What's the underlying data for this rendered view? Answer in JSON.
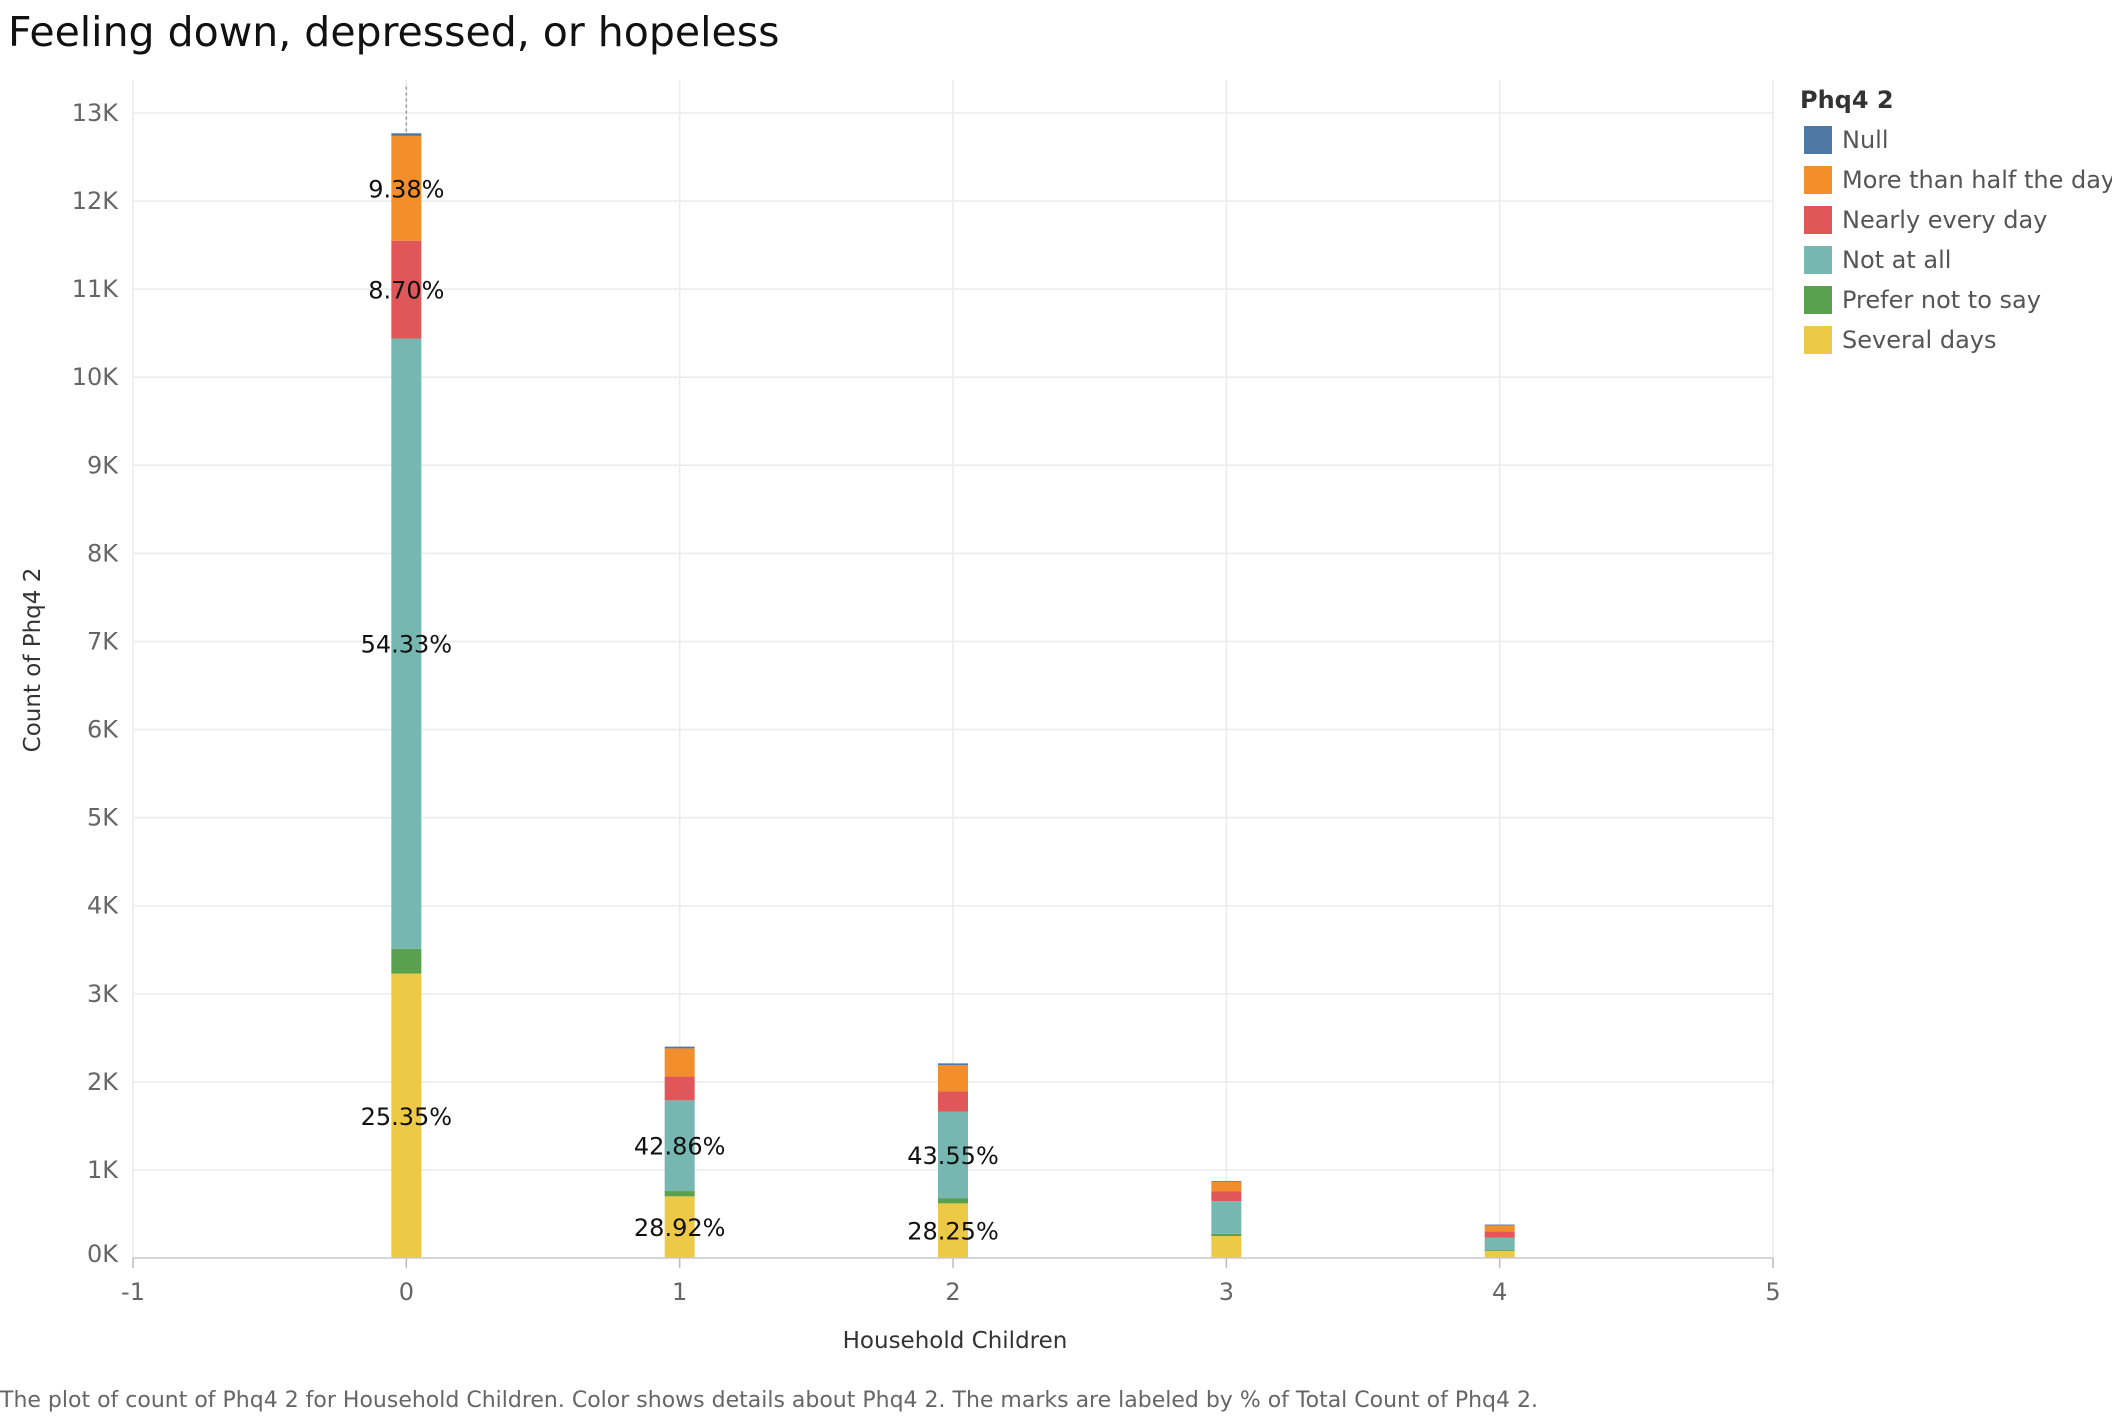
{
  "chart_data": {
    "type": "bar",
    "title": "Feeling down, depressed, or hopeless",
    "xlabel": "Household Children",
    "ylabel": "Count of Phq4 2",
    "x_ticks": [
      "-1",
      "0",
      "1",
      "2",
      "3",
      "4",
      "5"
    ],
    "y_ticks": [
      "0K",
      "1K",
      "2K",
      "3K",
      "4K",
      "5K",
      "6K",
      "7K",
      "8K",
      "9K",
      "10K",
      "11K",
      "12K",
      "13K"
    ],
    "xlim": [
      -1,
      5
    ],
    "ylim": [
      0,
      13000
    ],
    "stacked": true,
    "grid": true,
    "legend_position": "right",
    "legend_title": "Phq4 2",
    "categories": [
      0,
      1,
      2,
      3,
      4
    ],
    "series": [
      {
        "name": "Several days",
        "color": "#EDC948",
        "values": [
          3230,
          700,
          620,
          250,
          80
        ]
      },
      {
        "name": "Prefer not to say",
        "color": "#59A14F",
        "values": [
          280,
          60,
          60,
          25,
          10
        ]
      },
      {
        "name": "Not at all",
        "color": "#76B7B2",
        "values": [
          6930,
          1030,
          980,
          370,
          140
        ]
      },
      {
        "name": "Nearly every day",
        "color": "#E15759",
        "values": [
          1110,
          270,
          230,
          110,
          70
        ]
      },
      {
        "name": "More than half the days",
        "color": "#F28E2B",
        "values": [
          1190,
          320,
          300,
          110,
          70
        ]
      },
      {
        "name": "Null",
        "color": "#4E79A7",
        "values": [
          30,
          20,
          20,
          10,
          10
        ]
      }
    ],
    "data_labels": [
      {
        "x": 0,
        "series": "More than half the days",
        "text": "9.38%"
      },
      {
        "x": 0,
        "series": "Nearly every day",
        "text": "8.70%"
      },
      {
        "x": 0,
        "series": "Not at all",
        "text": "54.33%"
      },
      {
        "x": 0,
        "series": "Several days",
        "text": "25.35%"
      },
      {
        "x": 1,
        "series": "Not at all",
        "text": "42.86%"
      },
      {
        "x": 1,
        "series": "Several days",
        "text": "28.92%"
      },
      {
        "x": 2,
        "series": "Not at all",
        "text": "43.55%"
      },
      {
        "x": 2,
        "series": "Several days",
        "text": "28.25%"
      }
    ]
  },
  "legend": {
    "title": "Phq4 2",
    "items": [
      {
        "label": "Null",
        "color": "#4E79A7"
      },
      {
        "label": "More than half the days",
        "color": "#F28E2B"
      },
      {
        "label": "Nearly every day",
        "color": "#E15759"
      },
      {
        "label": "Not at all",
        "color": "#76B7B2"
      },
      {
        "label": "Prefer not to say",
        "color": "#59A14F"
      },
      {
        "label": "Several days",
        "color": "#EDC948"
      }
    ]
  },
  "caption": "The plot of count of Phq4 2 for Household Children.  Color shows details about Phq4 2.  The marks are labeled by % of Total Count of Phq4 2."
}
